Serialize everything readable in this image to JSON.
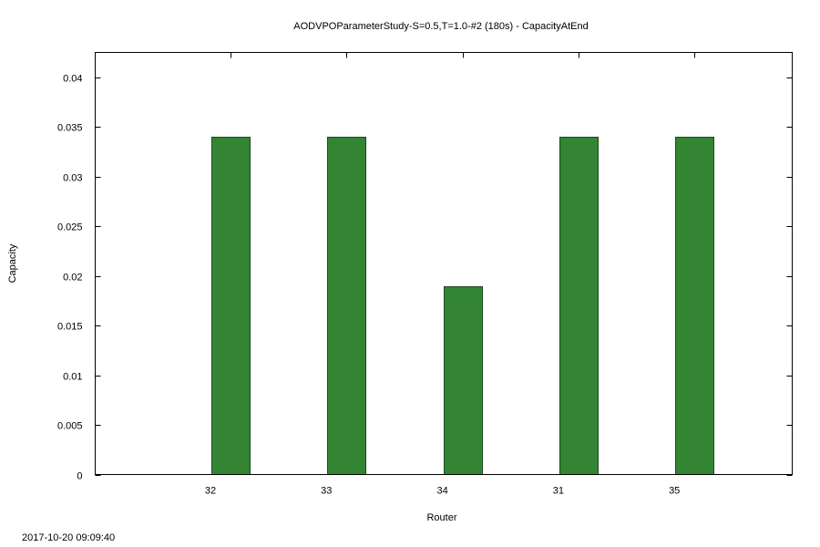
{
  "chart_data": {
    "type": "bar",
    "title": "AODVPOParameterStudy-S=0.5,T=1.0-#2 (180s) - CapacityAtEnd",
    "xlabel": "Router",
    "ylabel": "Capacity",
    "categories": [
      "32",
      "33",
      "34",
      "31",
      "35"
    ],
    "values": [
      0.034,
      0.034,
      0.019,
      0.034,
      0.034
    ],
    "ylim": [
      0,
      0.0425
    ],
    "yticks": [
      "0",
      "0.005",
      "0.01",
      "0.015",
      "0.02",
      "0.025",
      "0.03",
      "0.035",
      "0.04"
    ],
    "grid": false,
    "legend": "none",
    "bar_color": "#338533",
    "bar_edge_color": "#1a4a1a",
    "timestamp": "2017-10-20 09:09:40"
  }
}
